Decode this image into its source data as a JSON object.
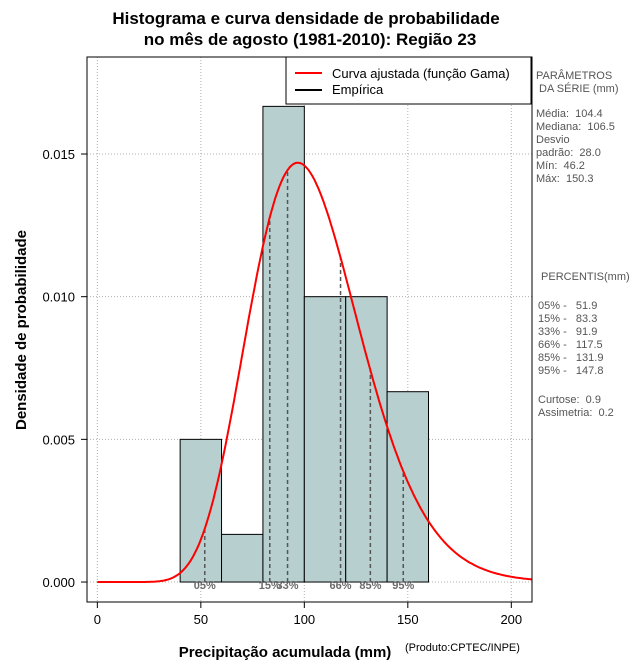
{
  "chart_data": {
    "type": "bar",
    "title_line1": "Histograma e curva densidade de probabilidade",
    "title_line2": "no mês de agosto (1981-2010): Região 23",
    "xlabel": "Precipitação acumulada (mm)",
    "ylabel": "Densidade de probabilidade",
    "credit": "(Produto:CPTEC/INPE)",
    "xlim": [
      -5,
      210
    ],
    "ylim": [
      -0.0007,
      0.0184
    ],
    "x_ticks": [
      0,
      50,
      100,
      150,
      200
    ],
    "x_tick_labels": [
      "0",
      "50",
      "100",
      "150",
      "200"
    ],
    "y_ticks": [
      0.0,
      0.005,
      0.01,
      0.015
    ],
    "y_tick_labels": [
      "0.000",
      "0.005",
      "0.010",
      "0.015"
    ],
    "grid": true,
    "bins": [
      {
        "start": 40,
        "end": 60,
        "density": 0.005
      },
      {
        "start": 60,
        "end": 80,
        "density": 0.00167
      },
      {
        "start": 80,
        "end": 100,
        "density": 0.01667
      },
      {
        "start": 100,
        "end": 120,
        "density": 0.01
      },
      {
        "start": 120,
        "end": 140,
        "density": 0.01
      },
      {
        "start": 140,
        "end": 160,
        "density": 0.00667
      }
    ],
    "gamma_fit": {
      "shape": 13.9,
      "scale": 7.51
    },
    "legend": [
      {
        "label": "Curva ajustada (função Gama)",
        "color": "#ff0000"
      },
      {
        "label": "Empírica",
        "color": "#000000"
      }
    ],
    "percentile_lines": [
      {
        "label": "05%",
        "value": 51.9
      },
      {
        "label": "15%",
        "value": 83.3
      },
      {
        "label": "33%",
        "value": 91.9
      },
      {
        "label": "66%",
        "value": 117.5
      },
      {
        "label": "85%",
        "value": 131.9
      },
      {
        "label": "95%",
        "value": 147.8
      }
    ],
    "colors": {
      "bar_fill": "#b7cfcf",
      "curve": "#ff0000",
      "grid": "#b0b0b0"
    }
  },
  "sidebar": {
    "params_title_1": "PARÂMETROS",
    "params_title_2": " DA SÉRIE (mm)",
    "media": "Média:  104.4",
    "mediana": "Mediana:  106.5",
    "desvio_1": "Desvio",
    "desvio_2": "padrão:  28.0",
    "min": "Mín:  46.2",
    "max": "Máx:  150.3",
    "pct_title": " PERCENTIS(mm)",
    "p05": "05% -   51.9",
    "p15": "15% -   83.3",
    "p33": "33% -   91.9",
    "p66": "66% -   117.5",
    "p85": "85% -   131.9",
    "p95": "95% -   147.8",
    "curtose": "Curtose:  0.9",
    "assimetria": "Assimetria:  0.2"
  }
}
